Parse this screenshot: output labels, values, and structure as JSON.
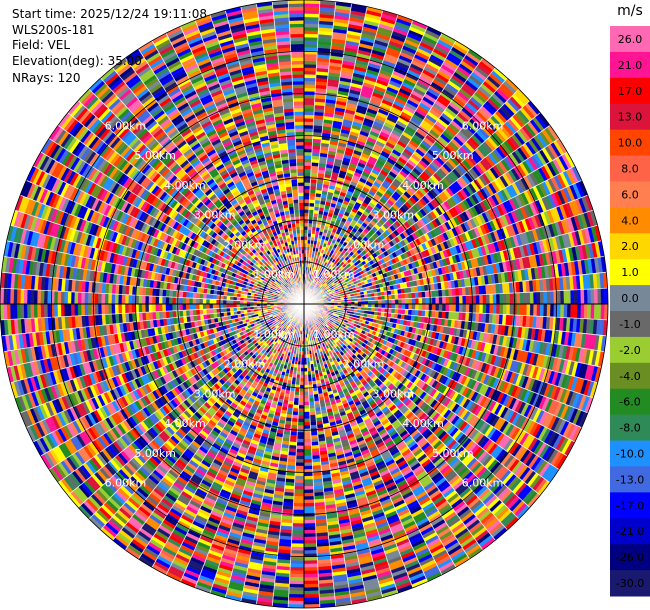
{
  "info": {
    "start_time": "Start time: 2025/12/24 19:11:08",
    "station": "WLS200s-181",
    "field": "Field: VEL",
    "elevation": "Elevation(deg): 35.00",
    "nrays": "NRays: 120"
  },
  "chart_data": {
    "type": "ppi",
    "field": "VEL",
    "units": "m/s",
    "nrays": 120,
    "elevation_deg": 35.0,
    "range_rings": [
      {
        "range_km": 1.0,
        "label": "1.00km"
      },
      {
        "range_km": 2.0,
        "label": "2.00km"
      },
      {
        "range_km": 3.0,
        "label": "3.00km"
      },
      {
        "range_km": 4.0,
        "label": "4.00km"
      },
      {
        "range_km": 5.0,
        "label": "5.00km"
      },
      {
        "range_km": 6.0,
        "label": "6.00km"
      }
    ],
    "max_range_km": 7.2,
    "colorbar": {
      "title": "m/s",
      "ticks": [
        "26.0",
        "21.0",
        "17.0",
        "13.0",
        "10.0",
        "8.0",
        "6.0",
        "4.0",
        "2.0",
        "1.0",
        "0.0",
        "-1.0",
        "-2.0",
        "-4.0",
        "-6.0",
        "-8.0",
        "-10.0",
        "-13.0",
        "-17.0",
        "-21.0",
        "-26.0",
        "-30.0"
      ],
      "colors": [
        "#ff69b4",
        "#ff1493",
        "#ff0000",
        "#dc143c",
        "#ff4500",
        "#ff6347",
        "#ff7f50",
        "#ff8c00",
        "#ffd700",
        "#ffff00",
        "#778899",
        "#696969",
        "#9acd32",
        "#6b8e23",
        "#228b22",
        "#2e8b57",
        "#1e90ff",
        "#4169e1",
        "#0000ff",
        "#0000cd",
        "#000080",
        "#191970"
      ]
    }
  }
}
